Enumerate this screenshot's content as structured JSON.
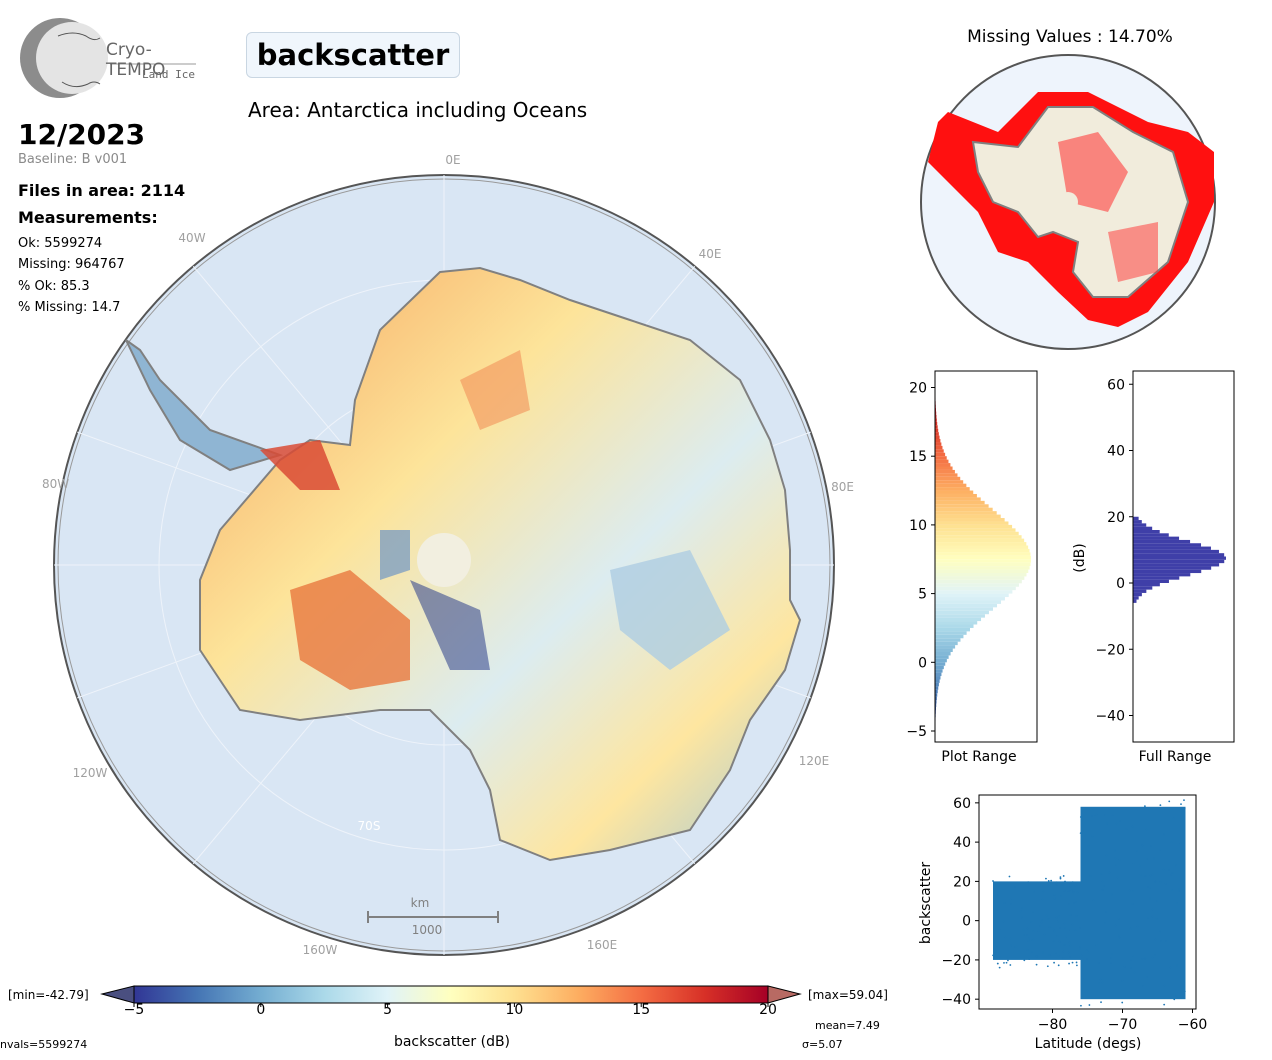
{
  "logo": {
    "line1": "Cryo-TEMPO",
    "line2": "Land Ice"
  },
  "header": {
    "title": "backscatter",
    "area": "Area: Antarctica including Oceans",
    "date": "12/2023",
    "baseline": "Baseline: B v001",
    "files": "Files in area: 2114",
    "measurements": "Measurements:",
    "ok": "Ok: 5599274",
    "missing": "Missing: 964767",
    "pct_ok": "% Ok: 85.3",
    "pct_missing": "% Missing: 14.7"
  },
  "map": {
    "lon_labels": [
      "0E",
      "40E",
      "80E",
      "120E",
      "160E",
      "160W",
      "120W",
      "80W",
      "40W"
    ],
    "lat_label": "70S",
    "scale_unit": "km",
    "scale_value": "1000"
  },
  "inset": {
    "title": "Missing Values : 14.70%"
  },
  "colorbar": {
    "min_label": "[min=-42.79]",
    "max_label": "[max=59.04]",
    "ticks": [
      "−5",
      "0",
      "5",
      "10",
      "15",
      "20"
    ],
    "xlabel": "backscatter (dB)",
    "nvals": "nvals=5599274",
    "mean": "mean=7.49",
    "sigma": "σ=5.07",
    "colors": [
      "#313695",
      "#4575b4",
      "#74add1",
      "#abd9e9",
      "#e0f3f8",
      "#ffffbf",
      "#fee090",
      "#fdae61",
      "#f46d43",
      "#d73027",
      "#a50026"
    ]
  },
  "chart_data": [
    {
      "type": "bar",
      "orientation": "horizontal",
      "title": "",
      "xlabel": "Plot Range",
      "ylabel": "",
      "ylim": [
        -5.8,
        21.2
      ],
      "yticks": [
        "−5",
        "0",
        "5",
        "10",
        "15",
        "20"
      ],
      "ytick_values": [
        -5,
        0,
        5,
        10,
        15,
        20
      ],
      "distribution": {
        "mean": 7.49,
        "sigma": 3.6,
        "range": [
          -5,
          20
        ]
      }
    },
    {
      "type": "bar",
      "orientation": "horizontal",
      "title": "",
      "xlabel": "Full Range",
      "ylabel": "(dB)",
      "ylim": [
        -48,
        64
      ],
      "yticks": [
        "−40",
        "−20",
        "0",
        "20",
        "40",
        "60"
      ],
      "ytick_values": [
        -40,
        -20,
        0,
        20,
        40,
        60
      ],
      "distribution": {
        "mean": 7.49,
        "sigma": 5.07,
        "range": [
          -6,
          20
        ]
      },
      "color": "#3f3fa8"
    },
    {
      "type": "scatter",
      "title": "",
      "xlabel": "Latitude (degs)",
      "ylabel": "backscatter",
      "xlim": [
        -90.5,
        -59.5
      ],
      "ylim": [
        -45,
        64
      ],
      "xticks": [
        "−80",
        "−70",
        "−60"
      ],
      "xtick_values": [
        -80,
        -70,
        -60
      ],
      "yticks": [
        "−40",
        "−20",
        "0",
        "20",
        "40",
        "60"
      ],
      "ytick_values": [
        -40,
        -20,
        0,
        20,
        40,
        60
      ],
      "color": "#1f77b4",
      "bands": [
        {
          "x": [
            -88.5,
            -76
          ],
          "y": [
            -20,
            20
          ]
        },
        {
          "x": [
            -76,
            -61
          ],
          "y": [
            -40,
            58
          ]
        }
      ]
    }
  ]
}
